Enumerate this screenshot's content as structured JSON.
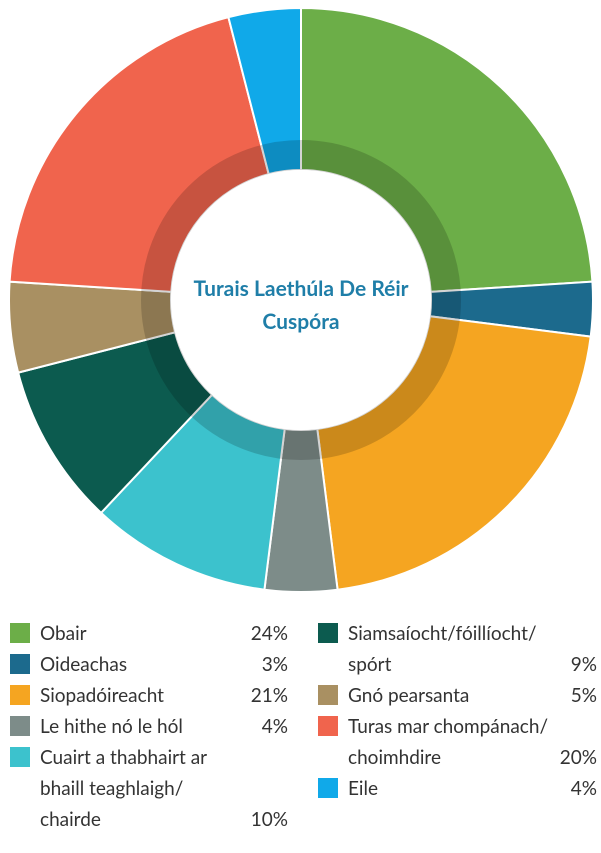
{
  "chart_data": {
    "type": "donut",
    "title": "Turais Laethúla De Réir Cuspóra",
    "categories": [
      "Obair",
      "Oideachas",
      "Siopadóireacht",
      "Le hithe nó le hól",
      "Cuairt a thabhairt ar bhaill teaghlaigh/ chairde",
      "Siamsaíocht/fóillíocht/ spórt",
      "Gnó pearsanta",
      "Turas mar chompánach/ choimhdire",
      "Eile"
    ],
    "values": [
      24,
      3,
      21,
      4,
      10,
      9,
      5,
      20,
      4
    ],
    "value_labels": [
      "24%",
      "3%",
      "21%",
      "4%",
      "10%",
      "9%",
      "5%",
      "20%",
      "4%"
    ],
    "colors": [
      "#6cae48",
      "#1c6a8d",
      "#f5a521",
      "#7d8c89",
      "#3cc2cd",
      "#0c5b4f",
      "#a99062",
      "#f0644d",
      "#10a9e9"
    ]
  }
}
